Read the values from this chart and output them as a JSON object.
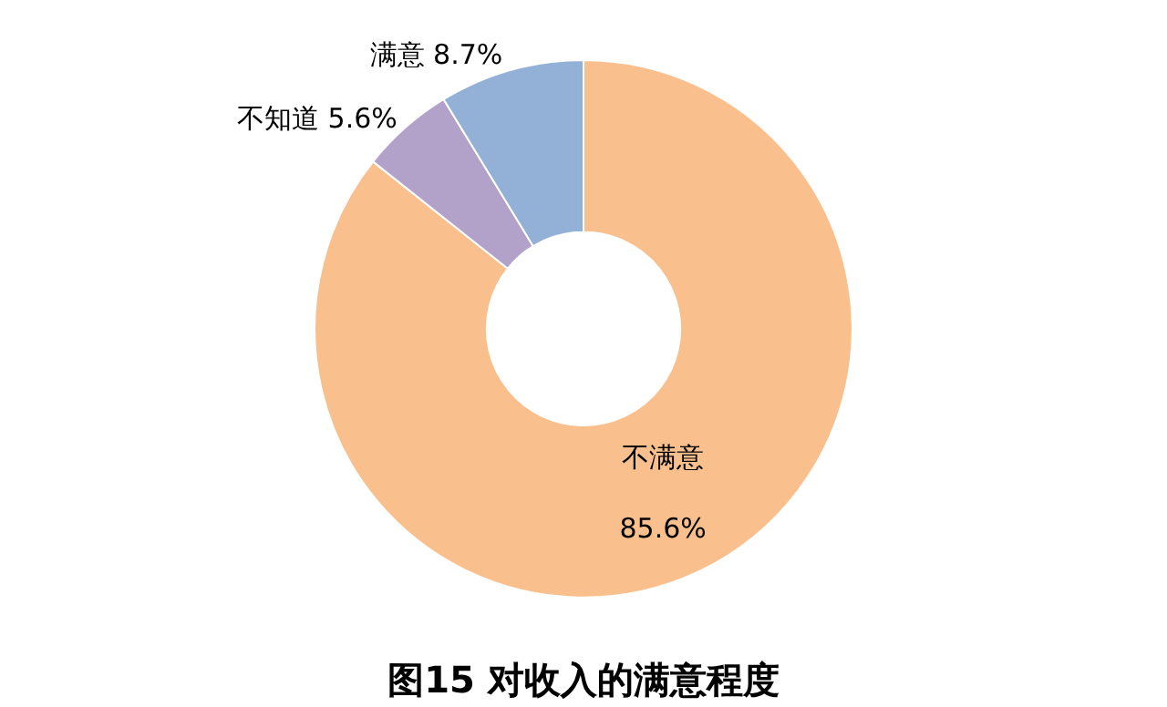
{
  "chart_data": {
    "type": "donut",
    "title": "图15 对收入的满意程度",
    "categories": [
      "不满意",
      "不知道",
      "满意"
    ],
    "values": [
      85.6,
      5.6,
      8.7
    ],
    "value_labels": [
      "85.6%",
      "5.6%",
      "8.7%"
    ],
    "colors": [
      "#f9c08e",
      "#b2a2c9",
      "#93b0d6"
    ],
    "legend": false
  }
}
